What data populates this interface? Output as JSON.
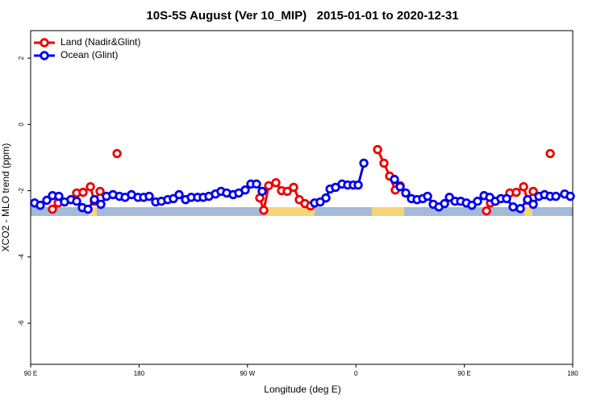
{
  "chart_data": {
    "type": "line",
    "title": "10S-5S August (Ver 10_MIP)   2015-01-01 to 2020-12-31",
    "xlabel": "Longitude (deg E)",
    "ylabel": "XCO2 - MLO trend (ppm)",
    "xlim": [
      90,
      540
    ],
    "xticks": [
      {
        "value": 90,
        "label": "90 E"
      },
      {
        "value": 180,
        "label": "180"
      },
      {
        "value": 270,
        "label": "90 W"
      },
      {
        "value": 360,
        "label": "0"
      },
      {
        "value": 450,
        "label": "90 E"
      },
      {
        "value": 540,
        "label": "180"
      }
    ],
    "ylim": [
      -7.24,
      2.83
    ],
    "yticks": [
      2,
      0,
      -2,
      -4,
      -6
    ],
    "legend": "top-left",
    "series": [
      {
        "name": "Land (Nadir&Glint)",
        "color": "#ee0000",
        "x": [
          108.1,
          112.8,
          null,
          128.2,
          133.5,
          139.6,
          142.9,
          147.6,
          null,
          161.7,
          null,
          280.2,
          283.5,
          287.6,
          293.6,
          298.3,
          303.0,
          308.3,
          313.0,
          317.7,
          322.4,
          null,
          378.0,
          383.3,
          388.0,
          392.7,
          396.7,
          null,
          468.4,
          471.7,
          null,
          487.8,
          493.1,
          499.2,
          502.5,
          507.2,
          null,
          521.3
        ],
        "values": [
          -2.56,
          -2.37,
          null,
          -2.07,
          -2.05,
          -1.88,
          -2.32,
          -2.02,
          null,
          -0.88,
          null,
          -2.22,
          -2.59,
          -1.85,
          -1.76,
          -2.0,
          -2.02,
          -1.9,
          -2.27,
          -2.39,
          -2.46,
          null,
          -0.76,
          -1.17,
          -1.56,
          -1.98,
          -1.85,
          null,
          -2.61,
          -2.37,
          null,
          -2.07,
          -2.05,
          -1.88,
          -2.29,
          -2.02,
          null,
          -0.88
        ]
      },
      {
        "name": "Ocean (Glint)",
        "color": "#0000ee",
        "x": [
          93.3,
          98.0,
          103.4,
          108.1,
          113.4,
          118.1,
          123.5,
          128.2,
          132.9,
          137.6,
          142.9,
          148.3,
          152.9,
          158.3,
          163.7,
          168.4,
          173.7,
          179.1,
          183.8,
          188.4,
          193.8,
          198.5,
          203.8,
          208.5,
          213.2,
          218.6,
          223.3,
          228.6,
          233.3,
          238.0,
          243.4,
          248.0,
          252.7,
          258.1,
          262.8,
          268.1,
          272.8,
          277.5,
          282.2,
          null,
          325.7,
          330.4,
          335.1,
          338.5,
          343.1,
          348.5,
          353.2,
          357.9,
          361.9,
          366.6,
          null,
          392.0,
          396.7,
          401.4,
          406.1,
          410.8,
          415.5,
          419.5,
          424.2,
          428.9,
          433.6,
          437.6,
          442.3,
          447.0,
          451.7,
          456.3,
          461.0,
          466.4,
          471.1,
          475.7,
          480.4,
          485.1,
          490.5,
          496.5,
          502.5,
          507.2,
          511.9,
          516.6,
          521.3,
          526.0,
          533.3,
          538.0
        ],
        "values": [
          -2.37,
          -2.44,
          -2.29,
          -2.15,
          -2.17,
          -2.34,
          -2.27,
          -2.32,
          -2.51,
          -2.56,
          -2.27,
          -2.41,
          -2.17,
          -2.12,
          -2.17,
          -2.2,
          -2.12,
          -2.2,
          -2.2,
          -2.17,
          -2.34,
          -2.32,
          -2.27,
          -2.24,
          -2.12,
          -2.27,
          -2.2,
          -2.2,
          -2.2,
          -2.17,
          -2.1,
          -2.02,
          -2.07,
          -2.12,
          -2.07,
          -1.98,
          -1.8,
          -1.8,
          -2.02,
          null,
          -2.37,
          -2.34,
          -2.22,
          -1.95,
          -1.9,
          -1.8,
          -1.83,
          -1.83,
          -1.83,
          -1.17,
          null,
          -1.66,
          -1.88,
          -2.07,
          -2.24,
          -2.27,
          -2.24,
          -2.17,
          -2.41,
          -2.49,
          -2.39,
          -2.2,
          -2.32,
          -2.32,
          -2.37,
          -2.44,
          -2.32,
          -2.15,
          -2.2,
          -2.32,
          -2.24,
          -2.24,
          -2.49,
          -2.54,
          -2.27,
          -2.41,
          -2.17,
          -2.12,
          -2.17,
          -2.17,
          -2.1,
          -2.17
        ]
      }
    ]
  }
}
